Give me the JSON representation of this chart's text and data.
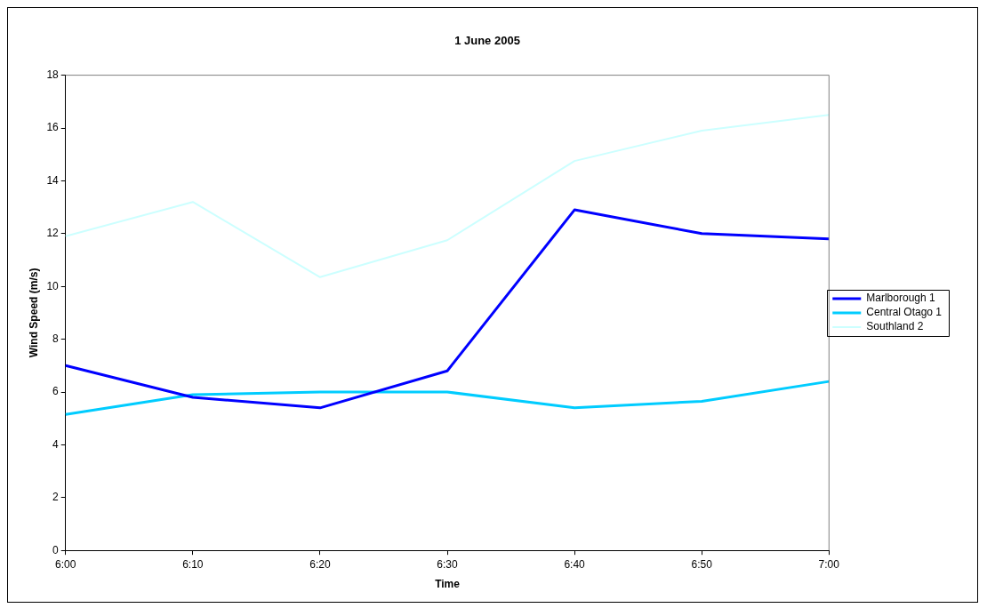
{
  "chart_data": {
    "type": "line",
    "title": "1 June 2005",
    "xlabel": "Time",
    "ylabel": "Wind Speed (m/s)",
    "categories": [
      "6:00",
      "6:10",
      "6:20",
      "6:30",
      "6:40",
      "6:50",
      "7:00"
    ],
    "series": [
      {
        "name": "Marlborough 1",
        "color": "#0000ff",
        "values": [
          7.0,
          5.8,
          5.4,
          6.8,
          12.9,
          12.0,
          11.8
        ]
      },
      {
        "name": "Central Otago 1",
        "color": "#00ccff",
        "values": [
          5.15,
          5.9,
          6.0,
          6.0,
          5.4,
          5.65,
          6.4
        ]
      },
      {
        "name": "Southland 2",
        "color": "#ccffff",
        "values": [
          11.9,
          13.2,
          10.35,
          11.75,
          14.75,
          15.9,
          16.5
        ]
      }
    ],
    "ylim": [
      0,
      18
    ],
    "yticks": [
      0,
      2,
      4,
      6,
      8,
      10,
      12,
      14,
      16,
      18
    ],
    "grid": false,
    "legend": "right",
    "marker": "none",
    "line_style": "solid"
  }
}
